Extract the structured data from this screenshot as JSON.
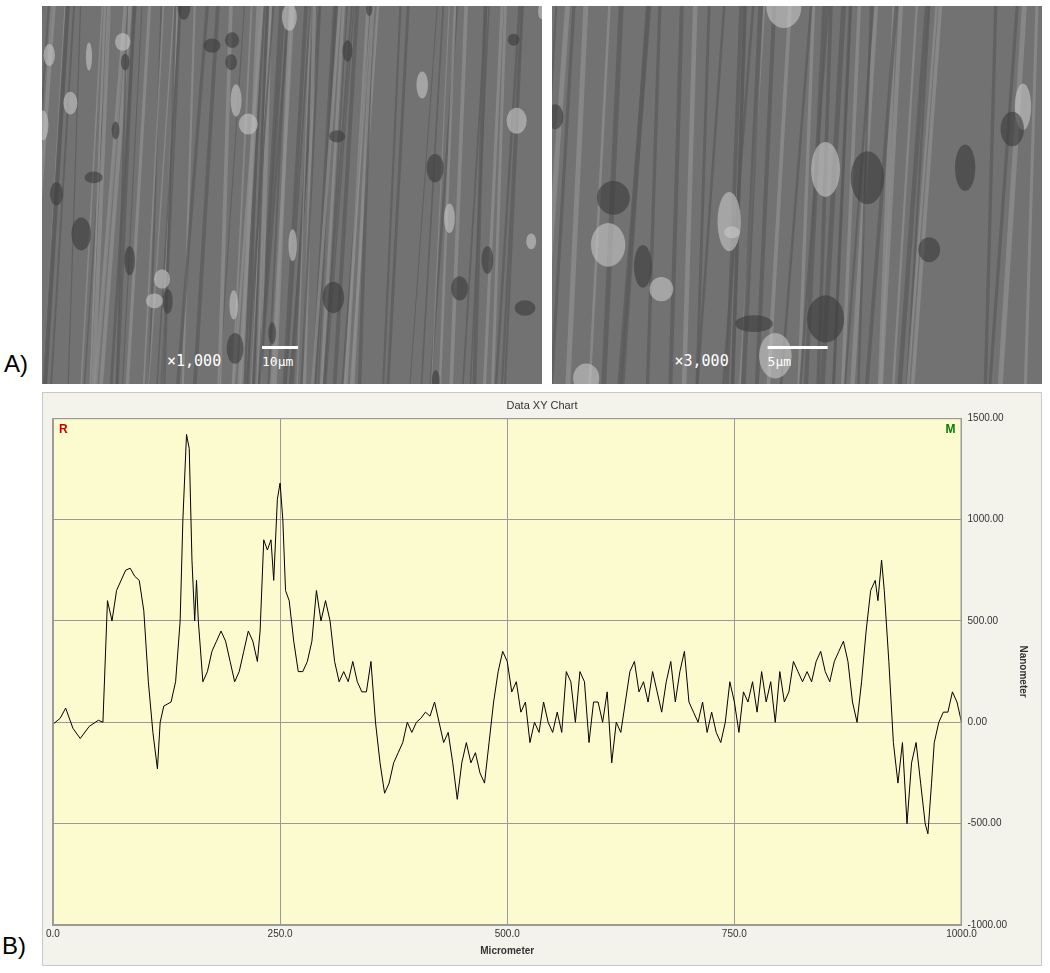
{
  "panel_labels": [
    "A)",
    "B)"
  ],
  "images": [
    {
      "magnification": "×1,000",
      "scale_bar": "10µm"
    },
    {
      "magnification": "×3,000",
      "scale_bar": "5µm"
    }
  ],
  "chart_data": {
    "type": "line",
    "title": "Data XY Chart",
    "x_label": "Micrometer",
    "y_label": "Nanometer",
    "annotations": [
      {
        "text": "R",
        "color": "#cc0000"
      },
      {
        "text": "M",
        "color": "#008000"
      }
    ],
    "x": [
      0,
      8,
      14,
      22,
      30,
      40,
      50,
      55,
      60,
      65,
      70,
      80,
      85,
      90,
      95,
      100,
      105,
      110,
      115,
      118,
      122,
      130,
      135,
      140,
      143,
      147,
      150,
      153,
      156,
      158,
      160,
      165,
      170,
      175,
      180,
      185,
      190,
      195,
      200,
      205,
      210,
      215,
      220,
      225,
      228,
      232,
      236,
      240,
      243,
      247,
      250,
      253,
      256,
      260,
      265,
      270,
      275,
      280,
      285,
      290,
      295,
      300,
      305,
      310,
      315,
      320,
      325,
      330,
      335,
      340,
      345,
      350,
      355,
      360,
      365,
      370,
      375,
      380,
      385,
      390,
      395,
      400,
      405,
      410,
      415,
      420,
      425,
      430,
      435,
      440,
      445,
      450,
      455,
      460,
      465,
      470,
      475,
      480,
      485,
      490,
      495,
      500,
      505,
      510,
      515,
      520,
      525,
      530,
      535,
      540,
      545,
      550,
      555,
      560,
      565,
      570,
      575,
      580,
      585,
      590,
      595,
      600,
      605,
      610,
      615,
      620,
      625,
      630,
      635,
      640,
      645,
      650,
      655,
      660,
      665,
      670,
      675,
      680,
      685,
      690,
      695,
      700,
      705,
      710,
      715,
      720,
      725,
      730,
      735,
      740,
      745,
      750,
      755,
      760,
      765,
      770,
      775,
      780,
      785,
      790,
      795,
      800,
      805,
      810,
      815,
      820,
      825,
      830,
      835,
      840,
      845,
      850,
      855,
      860,
      865,
      870,
      875,
      880,
      885,
      890,
      895,
      900,
      905,
      908,
      912,
      915,
      920,
      925,
      930,
      935,
      940,
      945,
      950,
      955,
      960,
      963,
      967,
      970,
      975,
      980,
      985,
      990,
      995,
      1000
    ],
    "values": [
      -10,
      20,
      70,
      -30,
      -80,
      -20,
      10,
      0,
      600,
      500,
      650,
      750,
      760,
      720,
      700,
      550,
      200,
      -50,
      -230,
      0,
      80,
      100,
      200,
      500,
      1000,
      1420,
      1350,
      800,
      500,
      700,
      500,
      200,
      250,
      350,
      400,
      450,
      400,
      300,
      200,
      250,
      350,
      450,
      400,
      300,
      450,
      900,
      850,
      900,
      700,
      1100,
      1180,
      1000,
      650,
      600,
      400,
      250,
      250,
      300,
      400,
      650,
      500,
      600,
      500,
      300,
      200,
      250,
      200,
      300,
      200,
      150,
      150,
      300,
      0,
      -200,
      -350,
      -300,
      -200,
      -150,
      -100,
      0,
      -50,
      0,
      20,
      50,
      30,
      100,
      0,
      -100,
      -50,
      -200,
      -380,
      -200,
      -100,
      -200,
      -150,
      -250,
      -300,
      -100,
      100,
      250,
      350,
      300,
      150,
      200,
      50,
      100,
      -100,
      0,
      -50,
      100,
      0,
      -50,
      50,
      -50,
      250,
      200,
      0,
      250,
      200,
      -100,
      100,
      100,
      0,
      150,
      -200,
      0,
      -50,
      100,
      250,
      300,
      150,
      200,
      100,
      250,
      150,
      50,
      200,
      300,
      100,
      250,
      350,
      100,
      50,
      0,
      100,
      -50,
      50,
      -50,
      -100,
      0,
      200,
      100,
      -50,
      150,
      100,
      200,
      50,
      250,
      100,
      200,
      0,
      250,
      100,
      150,
      300,
      250,
      200,
      250,
      200,
      300,
      350,
      250,
      200,
      300,
      350,
      400,
      300,
      100,
      0,
      200,
      450,
      650,
      700,
      600,
      800,
      650,
      300,
      -100,
      -300,
      -100,
      -500,
      -200,
      -100,
      -300,
      -500,
      -550,
      -300,
      -100,
      0,
      50,
      50,
      150,
      100,
      0
    ],
    "color": "#000000",
    "xlim": [
      0,
      1000
    ],
    "xticks": [
      {
        "value": 0,
        "label": "0.0"
      },
      {
        "value": 250,
        "label": "250.0"
      },
      {
        "value": 500,
        "label": "500.0"
      },
      {
        "value": 750,
        "label": "750.0"
      },
      {
        "value": 1000,
        "label": "1000.0"
      }
    ],
    "ylim": [
      -1000,
      1500
    ],
    "yticks": [
      {
        "value": -1000,
        "label": "-1000.00"
      },
      {
        "value": -500,
        "label": "-500.00"
      },
      {
        "value": 0,
        "label": "0.00"
      },
      {
        "value": 500,
        "label": "500.00"
      },
      {
        "value": 1000,
        "label": "1000.00"
      },
      {
        "value": 1500,
        "label": "1500.00"
      }
    ],
    "grid": true
  }
}
